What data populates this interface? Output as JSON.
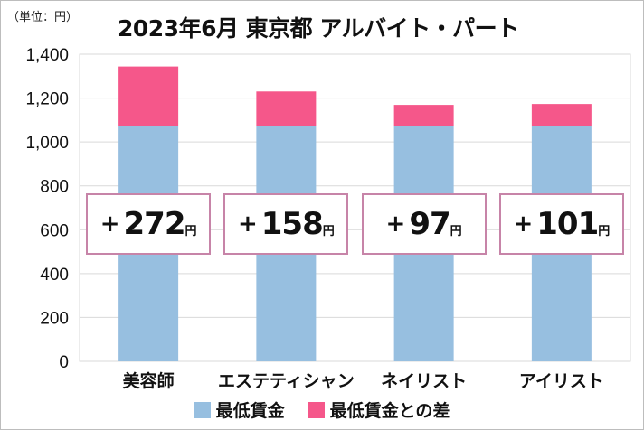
{
  "unit_label": "（単位：円）",
  "chart_data": {
    "type": "bar",
    "stacked": true,
    "title": "2023年6月 東京都 アルバイト・パート",
    "categories": [
      "美容師",
      "エステティシャン",
      "ネイリスト",
      "アイリスト"
    ],
    "series": [
      {
        "name": "最低賃金",
        "values": [
          1072,
          1072,
          1072,
          1072
        ],
        "color": "#97bfe0"
      },
      {
        "name": "最低賃金との差",
        "values": [
          272,
          158,
          97,
          101
        ],
        "color": "#f5578a"
      }
    ],
    "data_labels": [
      {
        "plus": "+",
        "value": "272",
        "unit": "円"
      },
      {
        "plus": "+",
        "value": "158",
        "unit": "円"
      },
      {
        "plus": "+",
        "value": "97",
        "unit": "円"
      },
      {
        "plus": "+",
        "value": "101",
        "unit": "円"
      }
    ],
    "ylim": [
      0,
      1400
    ],
    "yticks": [
      "0",
      "200",
      "400",
      "600",
      "800",
      "1,000",
      "1,200",
      "1,400"
    ],
    "grid": true,
    "legend_position": "bottom"
  }
}
